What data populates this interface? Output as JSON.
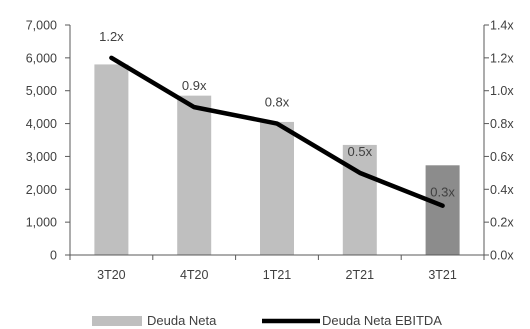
{
  "chart_data": {
    "type": "bar",
    "categories": [
      "3T20",
      "4T20",
      "1T21",
      "2T21",
      "3T21"
    ],
    "series": [
      {
        "name": "Deuda Neta",
        "type": "bar",
        "axis": "left",
        "values": [
          5800,
          4850,
          4050,
          3350,
          2730
        ],
        "color": "#bfbfbf",
        "highlight_color": "#8c8c8c",
        "highlight_index": 4
      },
      {
        "name": "Deuda Neta EBITDA",
        "type": "line",
        "axis": "right",
        "values": [
          1.2,
          0.9,
          0.8,
          0.5,
          0.3
        ],
        "data_labels": [
          "1.2x",
          "0.9x",
          "0.8x",
          "0.5x",
          "0.3x"
        ],
        "color": "#000000"
      }
    ],
    "y_left": {
      "ylim": [
        0,
        7000
      ],
      "ticks": [
        0,
        1000,
        2000,
        3000,
        4000,
        5000,
        6000,
        7000
      ],
      "tick_labels": [
        "0",
        "1,000",
        "2,000",
        "3,000",
        "4,000",
        "5,000",
        "6,000",
        "7,000"
      ]
    },
    "y_right": {
      "ylim": [
        0,
        1.4
      ],
      "ticks": [
        0,
        0.2,
        0.4,
        0.6,
        0.8,
        1.0,
        1.2,
        1.4
      ],
      "tick_labels": [
        "0.0x",
        "0.2x",
        "0.4x",
        "0.6x",
        "0.8x",
        "1.0x",
        "1.2x",
        "1.4x"
      ]
    },
    "legend_position": "bottom",
    "grid": false
  }
}
